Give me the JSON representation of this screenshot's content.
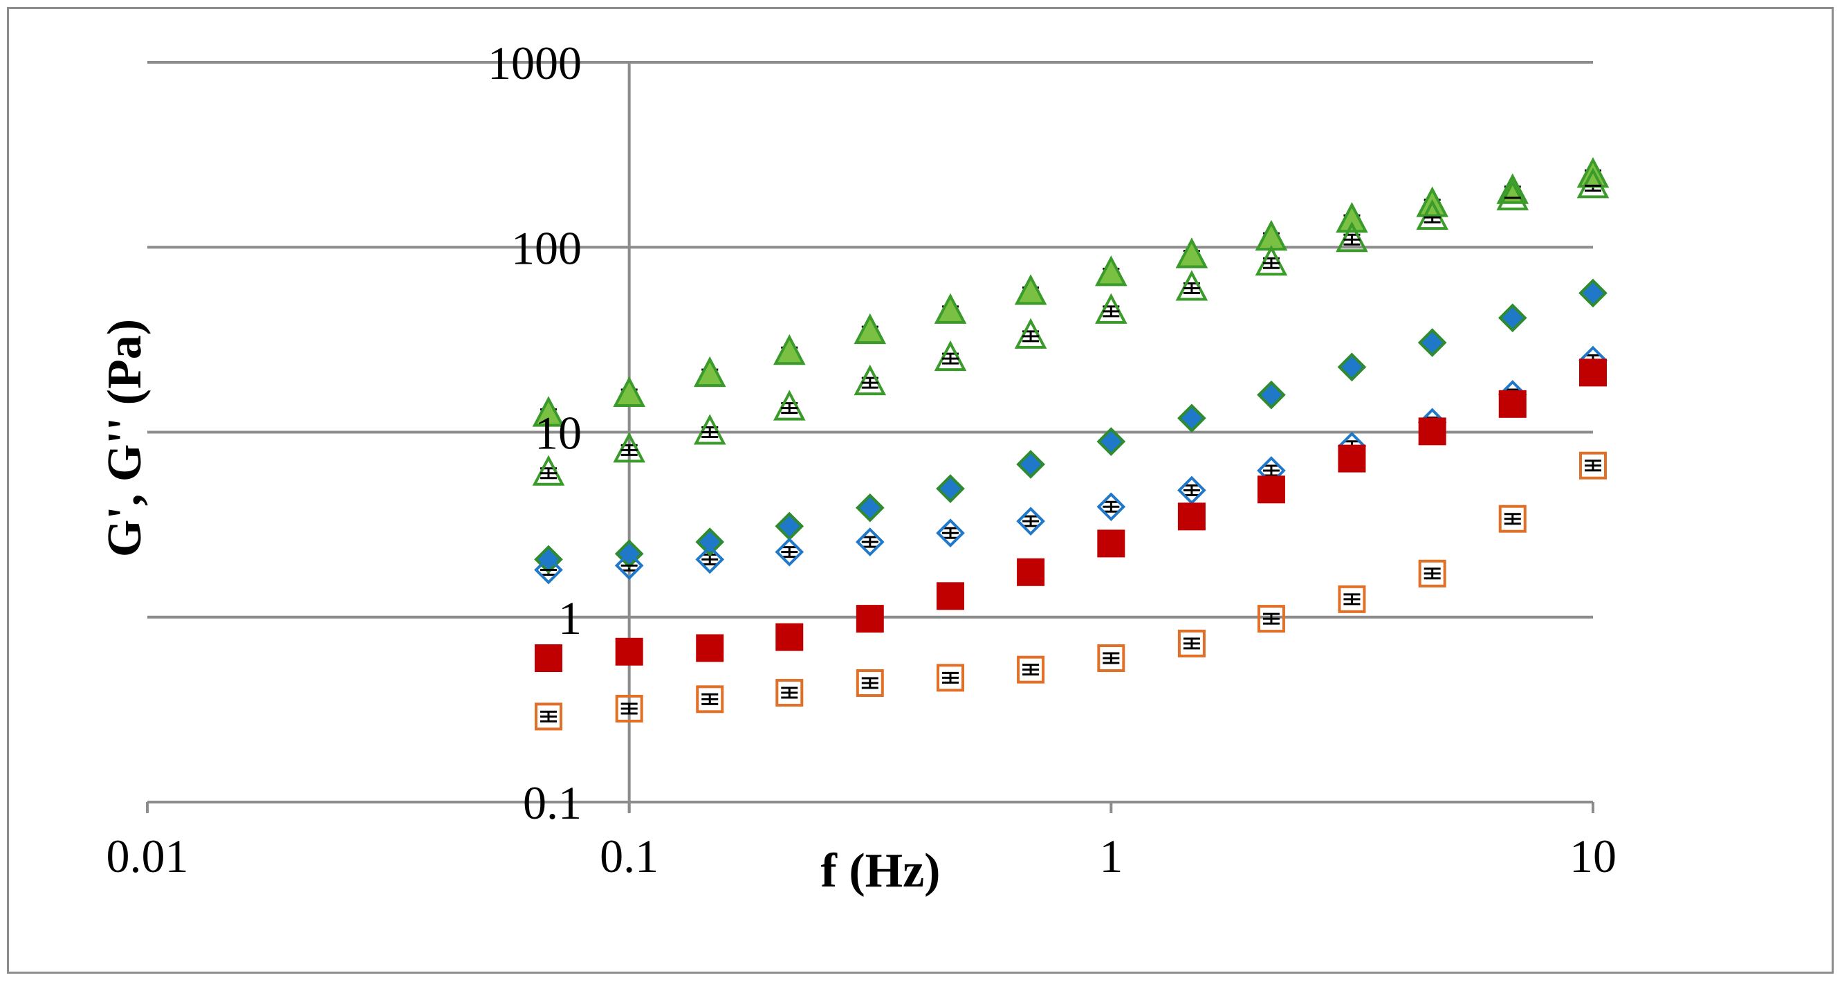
{
  "chart_data": {
    "type": "scatter",
    "title": "",
    "xlabel": "f (Hz)",
    "ylabel": "G', G'' (Pa)",
    "xscale": "log",
    "yscale": "log",
    "xlim": [
      0.01,
      10
    ],
    "ylim": [
      0.1,
      1000
    ],
    "x_ticks": [
      {
        "value": 0.01,
        "label": "0.01"
      },
      {
        "value": 0.1,
        "label": "0.1"
      },
      {
        "value": 1,
        "label": "1"
      },
      {
        "value": 10,
        "label": "10"
      }
    ],
    "y_ticks": [
      {
        "value": 0.1,
        "label": "0.1"
      },
      {
        "value": 1,
        "label": "1"
      },
      {
        "value": 10,
        "label": "10"
      },
      {
        "value": 100,
        "label": "100"
      },
      {
        "value": 1000,
        "label": "1000"
      }
    ],
    "grid": "horizontal",
    "legend": "none",
    "x": [
      0.068,
      0.1,
      0.147,
      0.215,
      0.316,
      0.464,
      0.681,
      1.0,
      1.47,
      2.15,
      3.16,
      4.64,
      6.81,
      10.0
    ],
    "series": [
      {
        "name": "G' green",
        "marker": "triangle",
        "filled": true,
        "color": "#7ac143",
        "stroke": "#3a9a2a",
        "values": [
          12.5,
          16,
          20.5,
          27,
          35,
          45,
          57,
          72,
          90,
          112,
          140,
          170,
          200,
          245
        ]
      },
      {
        "name": "G'' green",
        "marker": "triangle",
        "filled": false,
        "color": "#ffffff",
        "stroke": "#3a9a2a",
        "values": [
          6,
          8,
          10,
          13.5,
          18.5,
          25,
          33,
          45,
          60,
          82,
          110,
          145,
          185,
          215
        ]
      },
      {
        "name": "G' blue",
        "marker": "diamond",
        "filled": true,
        "color": "#1f78c8",
        "stroke": "#2e8b2e",
        "values": [
          2.05,
          2.2,
          2.55,
          3.1,
          3.9,
          4.95,
          6.7,
          8.9,
          11.9,
          15.9,
          22.5,
          30.5,
          41.5,
          56.5
        ]
      },
      {
        "name": "G'' blue",
        "marker": "diamond",
        "filled": false,
        "color": "#ffffff",
        "stroke": "#1f78c8",
        "values": [
          1.8,
          1.9,
          2.05,
          2.25,
          2.55,
          2.85,
          3.3,
          3.95,
          4.85,
          6.2,
          8.4,
          11.3,
          16,
          24.5
        ]
      },
      {
        "name": "G' red",
        "marker": "square",
        "filled": true,
        "color": "#c00000",
        "stroke": "#c00000",
        "values": [
          0.6,
          0.65,
          0.68,
          0.78,
          0.98,
          1.3,
          1.75,
          2.5,
          3.5,
          4.9,
          7.2,
          10.1,
          14.2,
          21
        ]
      },
      {
        "name": "G'' red",
        "marker": "square",
        "filled": false,
        "color": "#ffffff",
        "stroke": "#e07028",
        "values": [
          0.29,
          0.32,
          0.36,
          0.39,
          0.44,
          0.47,
          0.52,
          0.6,
          0.72,
          0.98,
          1.25,
          1.72,
          3.4,
          6.6
        ]
      }
    ],
    "error_bar_color": "#000000"
  }
}
